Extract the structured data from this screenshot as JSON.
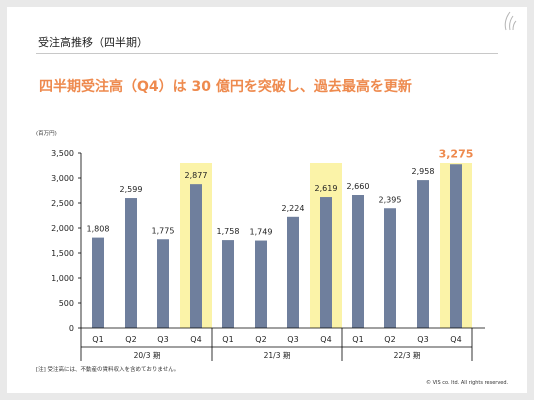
{
  "page": {
    "section_title": "受注高推移（四半期）",
    "headline": "四半期受注高（Q4）は 30 億円を突破し、過去最高を更新",
    "footnote": "[注] 受注高には、不動産の賃料収入を含めておりません。",
    "copyright": "© VIS co. ltd. All rights reserved."
  },
  "colors": {
    "bar": "#6f7f9d",
    "highlight_band": "#fbf3a8",
    "latest_label": "#ee8a4e",
    "axis": "#000000",
    "headline": "#ee8a4e"
  },
  "chart_data": {
    "type": "bar",
    "unit_label": "(百万円)",
    "ylim": [
      0,
      3500
    ],
    "yticks": [
      0,
      500,
      1000,
      1500,
      2000,
      2500,
      3000,
      3500
    ],
    "ytick_labels": [
      "0",
      "500",
      "1,000",
      "1,500",
      "2,000",
      "2,500",
      "3,000",
      "3,500"
    ],
    "categories": [
      "Q1",
      "Q2",
      "Q3",
      "Q4",
      "Q1",
      "Q2",
      "Q3",
      "Q4",
      "Q1",
      "Q2",
      "Q3",
      "Q4"
    ],
    "groups": [
      "20/3 期",
      "21/3 期",
      "22/3 期"
    ],
    "values": [
      1808,
      2599,
      1775,
      2877,
      1758,
      1749,
      2224,
      2619,
      2660,
      2395,
      2958,
      3275
    ],
    "value_labels": [
      "1,808",
      "2,599",
      "1,775",
      "2,877",
      "1,758",
      "1,749",
      "2,224",
      "2,619",
      "2,660",
      "2,395",
      "2,958",
      "3,275"
    ],
    "highlighted": [
      3,
      7,
      11
    ],
    "emphasized_label_index": 11,
    "grid": false,
    "legend": "none"
  }
}
